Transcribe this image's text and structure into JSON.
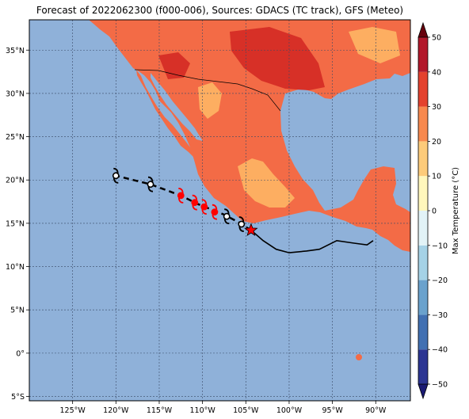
{
  "title": "Forecast of 2022062300 (f000-006), Sources: GDACS (TC track), GFS (Meteo)",
  "map": {
    "lon_range": [
      -130,
      -86
    ],
    "lat_range": [
      -5.5,
      38.5
    ],
    "lon_ticks": [
      {
        "value": -125,
        "label": "125°W"
      },
      {
        "value": -120,
        "label": "120°W"
      },
      {
        "value": -115,
        "label": "115°W"
      },
      {
        "value": -110,
        "label": "110°W"
      },
      {
        "value": -105,
        "label": "105°W"
      },
      {
        "value": -100,
        "label": "100°W"
      },
      {
        "value": -95,
        "label": "95°W"
      },
      {
        "value": -90,
        "label": "90°W"
      }
    ],
    "lat_ticks": [
      {
        "value": 35,
        "label": "35°N"
      },
      {
        "value": 30,
        "label": "30°N"
      },
      {
        "value": 25,
        "label": "25°N"
      },
      {
        "value": 20,
        "label": "20°N"
      },
      {
        "value": 15,
        "label": "15°N"
      },
      {
        "value": 10,
        "label": "10°N"
      },
      {
        "value": 5,
        "label": "5°N"
      },
      {
        "value": 0,
        "label": "0°"
      },
      {
        "value": -5,
        "label": "5°S"
      }
    ],
    "grid": true,
    "ocean_color": "#8fb1d9",
    "land_color": "#f36b46"
  },
  "track": {
    "past_path": [
      [
        -90.3,
        13.0
      ],
      [
        -91,
        12.5
      ],
      [
        -92.5,
        12.7
      ],
      [
        -94.5,
        13.0
      ],
      [
        -96.5,
        12.0
      ],
      [
        -98,
        11.8
      ],
      [
        -100,
        11.6
      ],
      [
        -101.5,
        12.0
      ],
      [
        -103.0,
        13.0
      ],
      [
        -104.4,
        14.2
      ]
    ],
    "current_position": [
      -104.4,
      14.2
    ],
    "forecast_path": [
      [
        -104.4,
        14.2
      ],
      [
        -106.0,
        15.2
      ],
      [
        -107.5,
        16.0
      ],
      [
        -109,
        16.6
      ],
      [
        -110.5,
        17.2
      ],
      [
        -112.5,
        18.2
      ],
      [
        -116.0,
        19.5
      ],
      [
        -120.0,
        20.5
      ]
    ],
    "forecast_symbols": [
      {
        "lon": -105.5,
        "lat": 14.9,
        "color": "#000000"
      },
      {
        "lon": -107.2,
        "lat": 15.8,
        "color": "#000000"
      },
      {
        "lon": -108.6,
        "lat": 16.3,
        "color": "#ff0000"
      },
      {
        "lon": -109.8,
        "lat": 16.9,
        "color": "#ff0000"
      },
      {
        "lon": -110.9,
        "lat": 17.4,
        "color": "#ff0000"
      },
      {
        "lon": -112.5,
        "lat": 18.2,
        "color": "#ff0000"
      },
      {
        "lon": -116.0,
        "lat": 19.5,
        "color": "#000000"
      },
      {
        "lon": -120.0,
        "lat": 20.5,
        "color": "#000000"
      }
    ]
  },
  "colorbar": {
    "label": "Max Temperature (°C)",
    "range": [
      -50,
      50
    ],
    "ticks": [
      "50",
      "40",
      "30",
      "20",
      "10",
      "0",
      "−10",
      "−20",
      "−30",
      "−40",
      "−50"
    ],
    "colors": [
      "#313695",
      "#4575b4",
      "#74add1",
      "#abd9e9",
      "#e0f3f8",
      "#ffffbf",
      "#fee090",
      "#fdae61",
      "#f46d43",
      "#d73027",
      "#a50026"
    ]
  }
}
